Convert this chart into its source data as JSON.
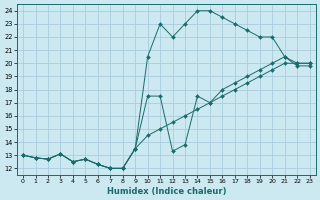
{
  "xlabel": "Humidex (Indice chaleur)",
  "ylabel": "",
  "bg_color": "#cce8f0",
  "grid_color": "#aaccdd",
  "line_color": "#1a6b6b",
  "xlim": [
    -0.5,
    23.5
  ],
  "ylim": [
    11.5,
    24.5
  ],
  "xticks": [
    0,
    1,
    2,
    3,
    4,
    5,
    6,
    7,
    8,
    9,
    10,
    11,
    12,
    13,
    14,
    15,
    16,
    17,
    18,
    19,
    20,
    21,
    22,
    23
  ],
  "yticks": [
    12,
    13,
    14,
    15,
    16,
    17,
    18,
    19,
    20,
    21,
    22,
    23,
    24
  ],
  "line1_x": [
    0,
    1,
    2,
    3,
    4,
    5,
    6,
    7,
    8,
    9,
    10,
    11,
    12,
    13,
    14,
    15,
    16,
    17,
    18,
    19,
    20,
    21,
    22,
    23
  ],
  "line1_y": [
    13,
    12.8,
    12.7,
    13.1,
    12.5,
    12.7,
    12.3,
    12.0,
    12.0,
    13.5,
    17.5,
    17.5,
    13.3,
    13.8,
    17.5,
    17.0,
    18.0,
    18.5,
    19.0,
    19.5,
    20.0,
    20.5,
    19.8,
    19.8
  ],
  "line2_x": [
    0,
    1,
    2,
    3,
    4,
    5,
    6,
    7,
    8,
    9,
    10,
    11,
    12,
    13,
    14,
    15,
    16,
    17,
    18,
    19,
    20,
    21,
    22,
    23
  ],
  "line2_y": [
    13,
    12.8,
    12.7,
    13.1,
    12.5,
    12.7,
    12.3,
    12.0,
    12.0,
    13.5,
    20.5,
    23.0,
    22.0,
    23.0,
    24.0,
    24.0,
    23.5,
    23.0,
    22.5,
    22.0,
    22.0,
    20.5,
    20.0,
    20.0
  ],
  "line3_x": [
    0,
    1,
    2,
    3,
    4,
    5,
    6,
    7,
    8,
    9,
    10,
    11,
    12,
    13,
    14,
    15,
    16,
    17,
    18,
    19,
    20,
    21,
    22,
    23
  ],
  "line3_y": [
    13,
    12.8,
    12.7,
    13.1,
    12.5,
    12.7,
    12.3,
    12.0,
    12.0,
    13.5,
    14.5,
    15.0,
    15.5,
    16.0,
    16.5,
    17.0,
    17.5,
    18.0,
    18.5,
    19.0,
    19.5,
    20.0,
    20.0,
    20.0
  ]
}
